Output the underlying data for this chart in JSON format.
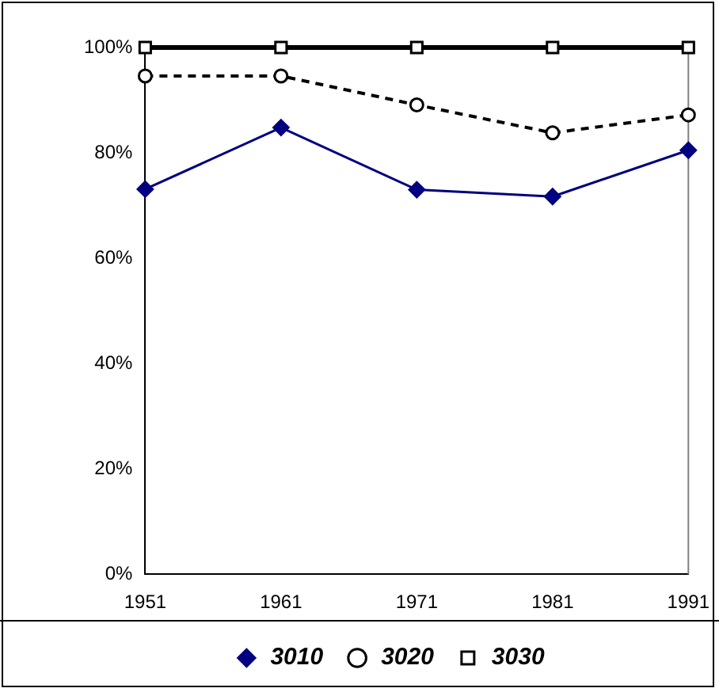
{
  "chart_data": {
    "type": "line",
    "categories": [
      "1951",
      "1961",
      "1971",
      "1981",
      "1991"
    ],
    "series": [
      {
        "name": "3010",
        "color": "#000080",
        "marker": "diamond",
        "line_style": "solid",
        "values": [
          73.1,
          84.8,
          73,
          71.7,
          80.5
        ]
      },
      {
        "name": "3020",
        "color": "#000000",
        "marker": "circle",
        "line_style": "dashed",
        "values": [
          94.6,
          94.6,
          89.1,
          83.8,
          87.2
        ]
      },
      {
        "name": "3030",
        "color": "#000000",
        "marker": "square",
        "line_style": "solid",
        "values": [
          100,
          100,
          100,
          100,
          100
        ]
      }
    ],
    "ylim": [
      0,
      100
    ],
    "yticks": [
      {
        "value": 0,
        "label": "0%"
      },
      {
        "value": 20,
        "label": "20%"
      },
      {
        "value": 40,
        "label": "40%"
      },
      {
        "value": 60,
        "label": "60%"
      },
      {
        "value": 80,
        "label": "80%"
      },
      {
        "value": 100,
        "label": "100%"
      }
    ],
    "grid": false,
    "legend": "bottom"
  }
}
